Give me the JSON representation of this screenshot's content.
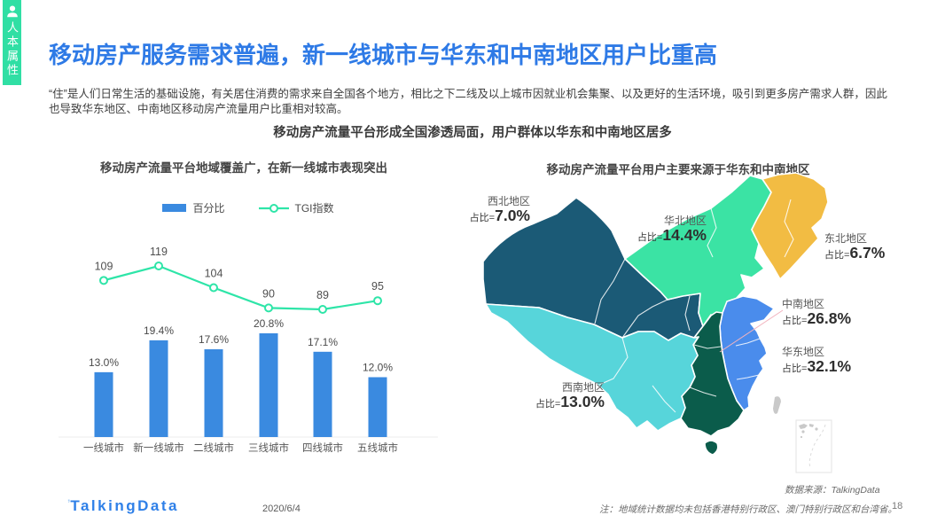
{
  "sidebar": {
    "label": "人本属性",
    "color": "#30DFA4"
  },
  "header": {
    "title": "移动房产服务需求普遍，新一线城市与华东和中南地区用户比重高",
    "paragraph": "“住”是人们日常生活的基础设施，有关居住消费的需求来自全国各个地方，相比之下二线及以上城市因就业机会集聚、以及更好的生活环境，吸引到更多房产需求人群，因此也导致华东地区、中南地区移动房产流量用户比重相对较高。",
    "subtitle": "移动房产流量平台形成全国渗透局面，用户群体以华东和中南地区居多"
  },
  "footer": {
    "logo": "TalkingData",
    "date": "2020/6/4",
    "page": "18"
  },
  "colors": {
    "title_blue": "#2E7AE6",
    "bar_blue": "#3A8AE0",
    "tgi_teal": "#2EE5A8"
  },
  "chart_data": [
    {
      "type": "bar",
      "title": "移动房产流量平台地域覆盖广，在新一线城市表现突出",
      "categories": [
        "一线城市",
        "新一线城市",
        "二线城市",
        "三线城市",
        "四线城市",
        "五线城市"
      ],
      "series": [
        {
          "name": "百分比",
          "type": "bar",
          "unit": "%",
          "color": "#3A8AE0",
          "values": [
            13.0,
            19.4,
            17.6,
            20.8,
            17.1,
            12.0
          ]
        },
        {
          "name": "TGI指数",
          "type": "line",
          "color": "#2EE5A8",
          "values": [
            109,
            119,
            104,
            90,
            89,
            95
          ]
        }
      ],
      "legend_position": "top",
      "grid": false,
      "value_labels": true
    },
    {
      "type": "map",
      "title": "移动房产流量平台用户主要来源于华东和中南地区",
      "value_prefix": "占比=",
      "regions": [
        {
          "name": "西北地区",
          "share": "7.0%",
          "color": "#1B5A76"
        },
        {
          "name": "华北地区",
          "share": "14.4%",
          "color": "#3BE3A4"
        },
        {
          "name": "东北地区",
          "share": "6.7%",
          "color": "#F2BC43"
        },
        {
          "name": "中南地区",
          "share": "26.8%",
          "color": "#0B5C4B"
        },
        {
          "name": "华东地区",
          "share": "32.1%",
          "color": "#4A8CEC"
        },
        {
          "name": "西南地区",
          "share": "13.0%",
          "color": "#57D5DA"
        }
      ],
      "source": "数据来源：TalkingData",
      "note": "注：地域统计数据均未包括香港特别行政区、澳门特别行政区和台湾省。"
    }
  ]
}
